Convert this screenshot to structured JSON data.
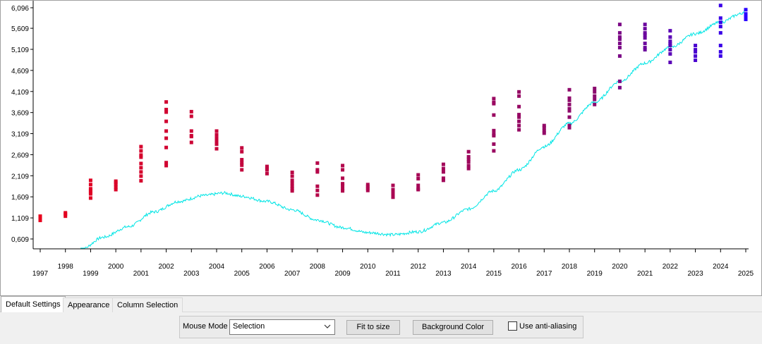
{
  "chart_data": {
    "type": "scatter",
    "y_ticks": [
      "0,609",
      "1,109",
      "1,609",
      "2,109",
      "2,609",
      "3,109",
      "3,609",
      "4,109",
      "4,609",
      "5,109",
      "5,609",
      "6,096"
    ],
    "ylim": [
      359,
      6100
    ],
    "xlim": [
      1996.8,
      2025.2
    ],
    "x_ticks": [
      "1997",
      "1998",
      "1999",
      "2000",
      "2001",
      "2002",
      "2003",
      "2004",
      "2005",
      "2006",
      "2007",
      "2008",
      "2009",
      "2010",
      "2011",
      "2012",
      "2013",
      "2014",
      "2015",
      "2016",
      "2017",
      "2018",
      "2019",
      "2020",
      "2021",
      "2022",
      "2023",
      "2024",
      "2025"
    ],
    "series": [
      {
        "kind": "points",
        "points": [
          {
            "x": 1997,
            "y": [
              1100,
              1150,
              1050
            ]
          },
          {
            "x": 1998,
            "y": [
              1230,
              1150,
              1200
            ]
          },
          {
            "x": 1999,
            "y": [
              1900,
              2000,
              1760,
              1800,
              1580,
              1680,
              1720
            ]
          },
          {
            "x": 2000,
            "y": [
              1980,
              1900,
              1840,
              1780,
              1950
            ]
          },
          {
            "x": 2001,
            "y": [
              2800,
              2700,
              2550,
              2400,
              2200,
              2100,
              1990,
              2300,
              2600
            ]
          },
          {
            "x": 2002,
            "y": [
              3860,
              3680,
              3400,
              3170,
              3000,
              2780,
              2420,
              2350,
              3620
            ]
          },
          {
            "x": 2003,
            "y": [
              3630,
              3520,
              3170,
              3040,
              2900,
              3060
            ]
          },
          {
            "x": 2004,
            "y": [
              3170,
              3000,
              2860,
              2750,
              3080,
              2930
            ]
          },
          {
            "x": 2005,
            "y": [
              2770,
              2680,
              2490,
              2360,
              2250,
              2420
            ]
          },
          {
            "x": 2006,
            "y": [
              2330,
              2250,
              2160,
              2290
            ]
          },
          {
            "x": 2007,
            "y": [
              2190,
              2100,
              1930,
              1800,
              1750,
              2000,
              1860
            ]
          },
          {
            "x": 2008,
            "y": [
              2410,
              2250,
              1860,
              1760,
              1650,
              2200
            ]
          },
          {
            "x": 2009,
            "y": [
              2350,
              2250,
              2050,
              1920,
              1800,
              1750,
              1880
            ]
          },
          {
            "x": 2010,
            "y": [
              1900,
              1810,
              1760,
              1850
            ]
          },
          {
            "x": 2011,
            "y": [
              1880,
              1780,
              1650,
              1600,
              1720
            ]
          },
          {
            "x": 2012,
            "y": [
              2130,
              2040,
              1880,
              1780,
              1800
            ]
          },
          {
            "x": 2013,
            "y": [
              2380,
              2280,
              2050,
              2000,
              2200
            ]
          },
          {
            "x": 2014,
            "y": [
              2680,
              2560,
              2440,
              2280,
              2350,
              2500
            ]
          },
          {
            "x": 2015,
            "y": [
              3940,
              3820,
              3550,
              3180,
              3060,
              2860,
              2700,
              3100,
              3850
            ]
          },
          {
            "x": 2016,
            "y": [
              4100,
              4000,
              3750,
              3560,
              3400,
              3200,
              3500,
              3300
            ]
          },
          {
            "x": 2017,
            "y": [
              3300,
              3180,
              3120,
              3250
            ]
          },
          {
            "x": 2018,
            "y": [
              4150,
              3950,
              3800,
              3650,
              3500,
              3300,
              3250,
              3700,
              3900
            ]
          },
          {
            "x": 2019,
            "y": [
              4180,
              4000,
              3920,
              3800,
              4100
            ]
          },
          {
            "x": 2020,
            "y": [
              5700,
              5500,
              5350,
              5250,
              5150,
              4950,
              4350,
              4200,
              5400
            ]
          },
          {
            "x": 2021,
            "y": [
              5700,
              5600,
              5500,
              5380,
              5250,
              5100,
              5150,
              5450
            ]
          },
          {
            "x": 2022,
            "y": [
              5550,
              5400,
              5300,
              5200,
              5100,
              5000,
              4800,
              5250
            ]
          },
          {
            "x": 2023,
            "y": [
              5200,
              5100,
              4950,
              4850,
              5050
            ]
          },
          {
            "x": 2024,
            "y": [
              6150,
              5850,
              5650,
              5500,
              5200,
              5050,
              4950,
              5750
            ]
          },
          {
            "x": 2025,
            "y": [
              6050,
              5900,
              5820,
              5950
            ]
          }
        ],
        "color_scale": {
          "low": "#e8001c",
          "mid": "#8b0a6e",
          "high": "#2a00ff"
        },
        "color_breaks": [
          2014.5,
          2019.5
        ]
      },
      {
        "kind": "line",
        "color": "#00e5e5",
        "knots": [
          [
            1998.6,
            350
          ],
          [
            1999.5,
            650
          ],
          [
            2000.5,
            900
          ],
          [
            2001.5,
            1250
          ],
          [
            2002.5,
            1500
          ],
          [
            2003.5,
            1640
          ],
          [
            2004.3,
            1700
          ],
          [
            2005,
            1620
          ],
          [
            2006,
            1500
          ],
          [
            2007,
            1300
          ],
          [
            2008,
            1060
          ],
          [
            2009,
            880
          ],
          [
            2010,
            760
          ],
          [
            2011,
            710
          ],
          [
            2012,
            780
          ],
          [
            2013,
            1000
          ],
          [
            2014,
            1320
          ],
          [
            2015,
            1750
          ],
          [
            2016,
            2250
          ],
          [
            2017,
            2800
          ],
          [
            2018,
            3350
          ],
          [
            2019,
            3850
          ],
          [
            2020,
            4350
          ],
          [
            2021,
            4780
          ],
          [
            2022,
            5150
          ],
          [
            2023,
            5480
          ],
          [
            2024,
            5750
          ],
          [
            2024.8,
            5950
          ],
          [
            2025,
            6050
          ]
        ]
      }
    ]
  },
  "tabs": [
    {
      "label": "Default Settings",
      "active": true
    },
    {
      "label": "Appearance",
      "active": false
    },
    {
      "label": "Column Selection",
      "active": false
    }
  ],
  "toolbar": {
    "mouse_mode_label": "Mouse Mode",
    "mouse_mode_value": "Selection",
    "fit_button": "Fit to size",
    "background_button": "Background Color",
    "antialias_label": "Use anti-aliasing",
    "antialias_checked": false
  },
  "colors": {
    "axis": "#000000",
    "plot_background": "#ffffff",
    "panel_background": "#f0f0f0"
  }
}
